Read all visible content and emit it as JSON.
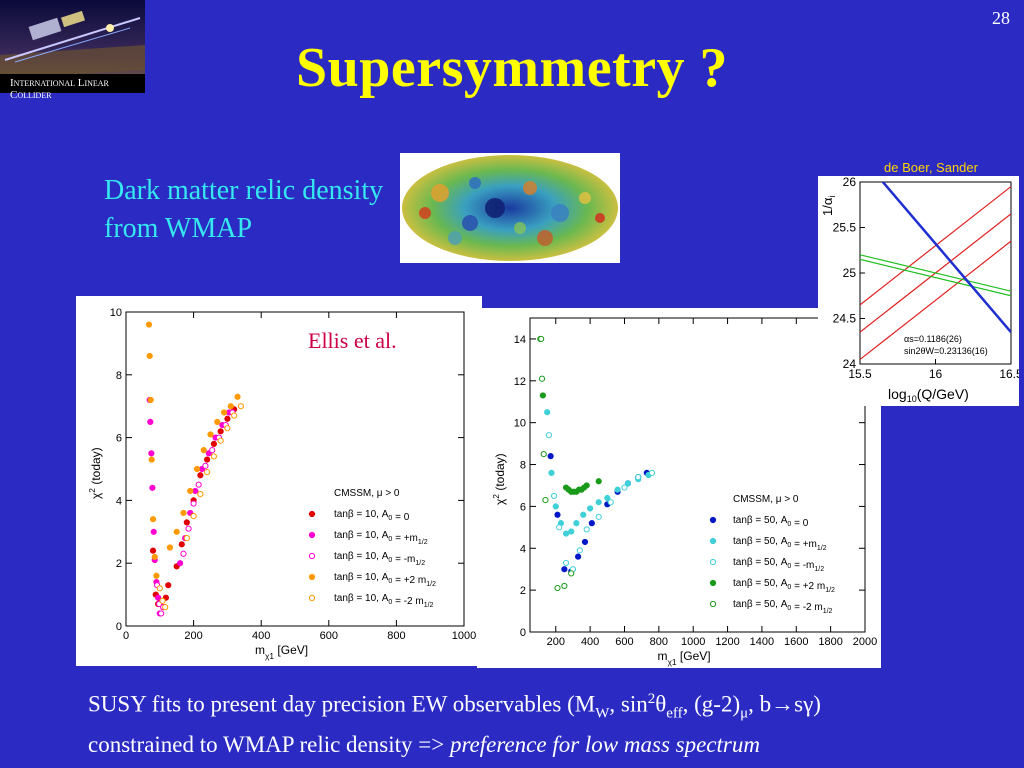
{
  "slide": {
    "number": "28",
    "title": "Supersymmetry ?",
    "logo_caption": "International Linear Collider",
    "dark_matter_label": "Dark matter relic density from WMAP",
    "deboer_credit": "de Boer, Sander",
    "bottom_line1_prefix": "SUSY fits to present day precision EW observables (M",
    "bottom_line1_sub_w": "W",
    "bottom_line1_mid": ", sin",
    "bottom_line1_sup_2": "2",
    "bottom_line1_theta": "θ",
    "bottom_line1_sub_eff": "eff",
    "bottom_line1_g2": ", (g-2)",
    "bottom_line1_sub_mu": "μ",
    "bottom_line1_end": ", b→sγ)",
    "bottom_line2_prefix": "constrained to WMAP relic density => ",
    "bottom_line2_italic": "preference for low mass spectrum"
  },
  "colors": {
    "background": "#2b2bc4",
    "title": "#ffff00",
    "cyan_text": "#35e8ef",
    "credit": "#ffd400"
  },
  "chart_data": [
    {
      "type": "scatter",
      "annotation": "Ellis et al.",
      "xlabel": "m_χ1 [GeV]",
      "ylabel": "χ2 (today)",
      "xlim": [
        0,
        1000
      ],
      "ylim": [
        0,
        10
      ],
      "xticks": [
        "0",
        "200",
        "400",
        "600",
        "800",
        "1000"
      ],
      "yticks": [
        "0",
        "2",
        "4",
        "6",
        "8",
        "10"
      ],
      "legend_title": "CMSSM, μ > 0",
      "legend_placement": "lower-right",
      "series": [
        {
          "name": "tanβ = 10, A0 = 0",
          "color": "#e00000",
          "marker": "filled",
          "x": [
            80,
            88,
            95,
            102,
            110,
            118,
            125,
            150,
            165,
            180,
            200,
            220,
            240,
            260,
            280,
            300,
            320
          ],
          "y": [
            2.4,
            1.0,
            0.7,
            0.8,
            0.6,
            0.9,
            1.3,
            1.9,
            2.6,
            3.3,
            4.0,
            4.8,
            5.3,
            5.8,
            6.2,
            6.6,
            6.9
          ]
        },
        {
          "name": "tanβ = 10, A0 = +m1/2",
          "color": "#ff00d0",
          "marker": "filled",
          "x": [
            70,
            72,
            75,
            78,
            82,
            85,
            90,
            95,
            100,
            160,
            175,
            190,
            205,
            225,
            245,
            265,
            285,
            305
          ],
          "y": [
            7.2,
            6.5,
            5.5,
            4.4,
            3.0,
            2.1,
            1.4,
            0.9,
            0.4,
            2.0,
            2.8,
            3.6,
            4.3,
            5.0,
            5.5,
            6.0,
            6.4,
            6.8
          ]
        },
        {
          "name": "tanβ = 10, A0 = -m1/2",
          "color": "#ff00d0",
          "marker": "open",
          "x": [
            92,
            98,
            104,
            110,
            170,
            185,
            200,
            215,
            235,
            255,
            275,
            295,
            315
          ],
          "y": [
            1.3,
            0.7,
            0.4,
            0.6,
            2.3,
            3.1,
            3.9,
            4.5,
            5.1,
            5.6,
            6.0,
            6.4,
            6.8
          ]
        },
        {
          "name": "tanβ = 10, A0 = +2 m1/2",
          "color": "#ff9900",
          "marker": "filled",
          "x": [
            68,
            70,
            73,
            76,
            80,
            85,
            90,
            130,
            150,
            170,
            190,
            210,
            230,
            250,
            270,
            290,
            310,
            330
          ],
          "y": [
            9.6,
            8.6,
            7.2,
            5.3,
            3.4,
            2.2,
            1.6,
            2.5,
            3.0,
            3.6,
            4.3,
            5.0,
            5.6,
            6.1,
            6.5,
            6.8,
            7.0,
            7.3
          ]
        },
        {
          "name": "tanβ = 10, A0 = -2 m1/2",
          "color": "#ff9900",
          "marker": "open",
          "x": [
            100,
            108,
            116,
            180,
            200,
            220,
            240,
            260,
            280,
            300,
            320,
            340
          ],
          "y": [
            1.2,
            0.8,
            0.6,
            2.8,
            3.5,
            4.2,
            4.9,
            5.4,
            5.9,
            6.3,
            6.7,
            7.0
          ]
        }
      ]
    },
    {
      "type": "scatter",
      "xlabel": "m_χ1 [GeV]",
      "ylabel": "χ2 (today)",
      "xlim": [
        50,
        2000
      ],
      "ylim": [
        0,
        15
      ],
      "xticks": [
        "200",
        "400",
        "600",
        "800",
        "1000",
        "1200",
        "1400",
        "1600",
        "1800",
        "2000"
      ],
      "yticks": [
        "0",
        "2",
        "4",
        "6",
        "8",
        "10",
        "12",
        "14"
      ],
      "legend_title": "CMSSM, μ > 0",
      "legend_placement": "lower-right",
      "series": [
        {
          "name": "tanβ = 50, A0 = 0",
          "color": "#0018c8",
          "marker": "filled",
          "x": [
            170,
            210,
            250,
            290,
            330,
            370,
            410,
            500,
            560,
            620,
            680,
            730
          ],
          "y": [
            8.4,
            5.6,
            3.0,
            2.9,
            3.6,
            4.3,
            5.2,
            6.1,
            6.7,
            7.1,
            7.4,
            7.6
          ]
        },
        {
          "name": "tanβ = 50, A0 = +m1/2",
          "color": "#3fd0d8",
          "marker": "filled",
          "x": [
            150,
            175,
            200,
            230,
            260,
            290,
            320,
            360,
            400,
            450,
            500,
            560,
            620,
            680,
            740
          ],
          "y": [
            10.5,
            7.6,
            6.0,
            5.2,
            4.7,
            4.8,
            5.2,
            5.6,
            5.9,
            6.2,
            6.4,
            6.8,
            7.1,
            7.3,
            7.5
          ]
        },
        {
          "name": "tanβ = 50, A0 = -m1/2",
          "color": "#3fd0d8",
          "marker": "open",
          "x": [
            160,
            190,
            220,
            260,
            300,
            340,
            380,
            450,
            520,
            600,
            680,
            760
          ],
          "y": [
            9.4,
            6.5,
            5.0,
            3.3,
            3.0,
            3.9,
            4.9,
            5.5,
            6.2,
            6.9,
            7.4,
            7.6
          ]
        },
        {
          "name": "tanβ = 50, A0 = +2 m1/2",
          "color": "#1a9a1a",
          "marker": "filled",
          "x": [
            110,
            125,
            260,
            275,
            290,
            305,
            320,
            335,
            350,
            365,
            380,
            450
          ],
          "y": [
            14.0,
            11.3,
            6.9,
            6.8,
            6.7,
            6.7,
            6.7,
            6.8,
            6.8,
            6.9,
            7.0,
            7.2
          ]
        },
        {
          "name": "tanβ = 50, A0 = -2 m1/2",
          "color": "#1a9a1a",
          "marker": "open",
          "x": [
            115,
            120,
            130,
            140,
            210,
            250,
            290
          ],
          "y": [
            14.0,
            12.1,
            8.5,
            6.3,
            2.1,
            2.2,
            2.8
          ]
        }
      ]
    },
    {
      "type": "line",
      "title": "",
      "xlabel": "log10(Q/GeV)",
      "ylabel": "1/αi",
      "xlim": [
        15.5,
        16.5
      ],
      "ylim": [
        24,
        26
      ],
      "xticks": [
        "15.5",
        "16",
        "16.5"
      ],
      "yticks": [
        "24",
        "24.5",
        "25",
        "25.5",
        "26"
      ],
      "annotation_line1": "αs=0.1186(26)",
      "annotation_line2": "sin2θW=0.23136(16)",
      "series": [
        {
          "color": "#e02020",
          "x": [
            15.5,
            16.5
          ],
          "y": [
            24.65,
            25.95
          ]
        },
        {
          "color": "#e02020",
          "x": [
            15.5,
            16.5
          ],
          "y": [
            24.35,
            25.65
          ]
        },
        {
          "color": "#e02020",
          "x": [
            15.5,
            16.5
          ],
          "y": [
            24.05,
            25.35
          ]
        },
        {
          "color": "#20c020",
          "x": [
            15.5,
            16.5
          ],
          "y": [
            25.15,
            24.75
          ]
        },
        {
          "color": "#20c020",
          "x": [
            15.5,
            16.5
          ],
          "y": [
            25.2,
            24.8
          ]
        },
        {
          "color": "#2030d0",
          "x": [
            15.6,
            16.5
          ],
          "y": [
            26.1,
            24.35
          ]
        }
      ]
    }
  ]
}
